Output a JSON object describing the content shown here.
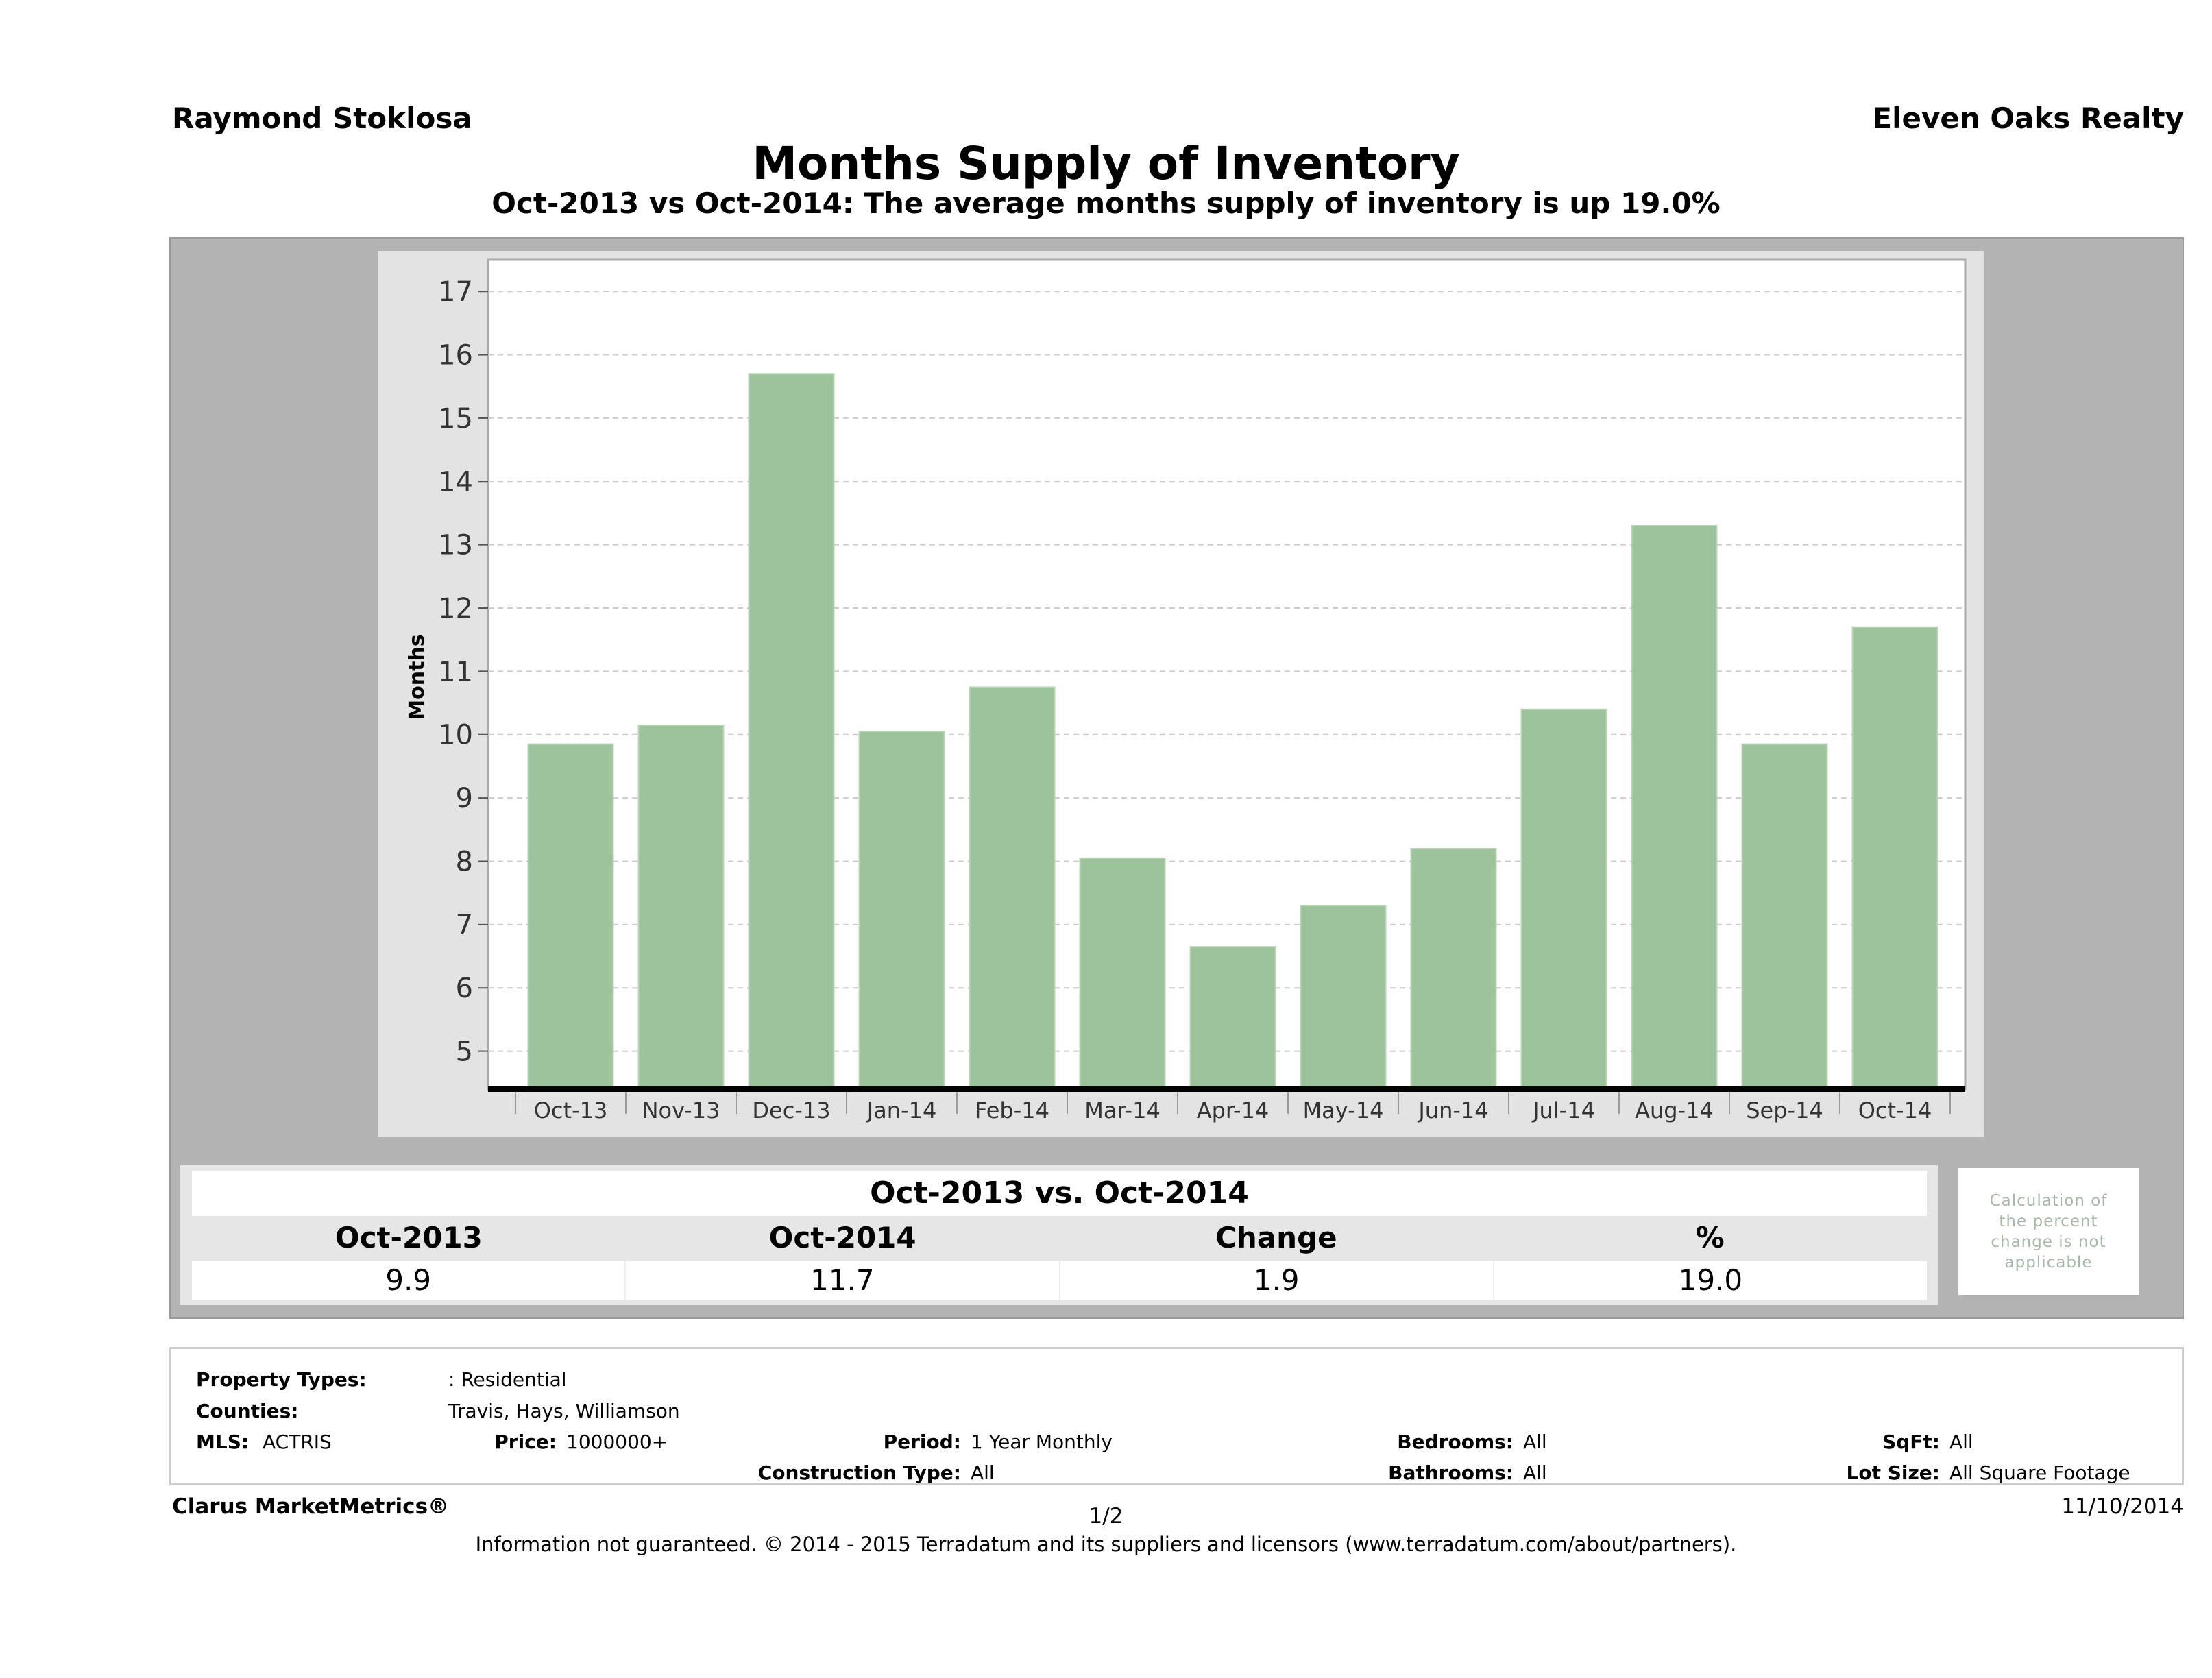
{
  "header": {
    "agent": "Raymond Stoklosa",
    "brokerage": "Eleven Oaks Realty"
  },
  "title": "Months Supply of Inventory",
  "subtitle": "Oct-2013 vs Oct-2014: The average months supply of inventory is up 19.0%",
  "chart_data": {
    "type": "bar",
    "ylabel": "Months",
    "xlabel": "",
    "categories": [
      "Oct-13",
      "Nov-13",
      "Dec-13",
      "Jan-14",
      "Feb-14",
      "Mar-14",
      "Apr-14",
      "May-14",
      "Jun-14",
      "Jul-14",
      "Aug-14",
      "Sep-14",
      "Oct-14"
    ],
    "values": [
      9.85,
      10.15,
      15.7,
      10.05,
      10.75,
      8.05,
      6.65,
      7.3,
      8.2,
      10.4,
      13.3,
      9.85,
      11.7
    ],
    "yticks": [
      5,
      6,
      7,
      8,
      9,
      10,
      11,
      12,
      13,
      14,
      15,
      16,
      17
    ],
    "ylim": [
      4.4,
      17.5
    ],
    "grid": true,
    "bar_color": "#9dc39a"
  },
  "comparison": {
    "title": "Oct-2013 vs. Oct-2014",
    "headers": [
      "Oct-2013",
      "Oct-2014",
      "Change",
      "%"
    ],
    "values": [
      "9.9",
      "11.7",
      "1.9",
      "19.0"
    ],
    "note": "Calculation of the percent change is not applicable"
  },
  "criteria": {
    "property_types_label": "Property Types:",
    "property_types": ": Residential",
    "counties_label": "Counties:",
    "counties": "Travis, Hays, Williamson",
    "mls_label": "MLS:",
    "mls": "ACTRIS",
    "price_label": "Price:",
    "price": "1000000+",
    "period_label": "Period:",
    "period": "1 Year Monthly",
    "construction_label": "Construction Type:",
    "construction": "All",
    "bedrooms_label": "Bedrooms:",
    "bedrooms": "All",
    "bathrooms_label": "Bathrooms:",
    "bathrooms": "All",
    "sqft_label": "SqFt:",
    "sqft": "All",
    "lot_label": "Lot Size:",
    "lot": "All Square Footage"
  },
  "footer": {
    "brand": "Clarus MarketMetrics®",
    "page": "1/2",
    "date": "11/10/2014",
    "disclaimer": "Information not guaranteed. © 2014 - 2015 Terradatum and its suppliers and licensors (www.terradatum.com/about/partners)."
  }
}
